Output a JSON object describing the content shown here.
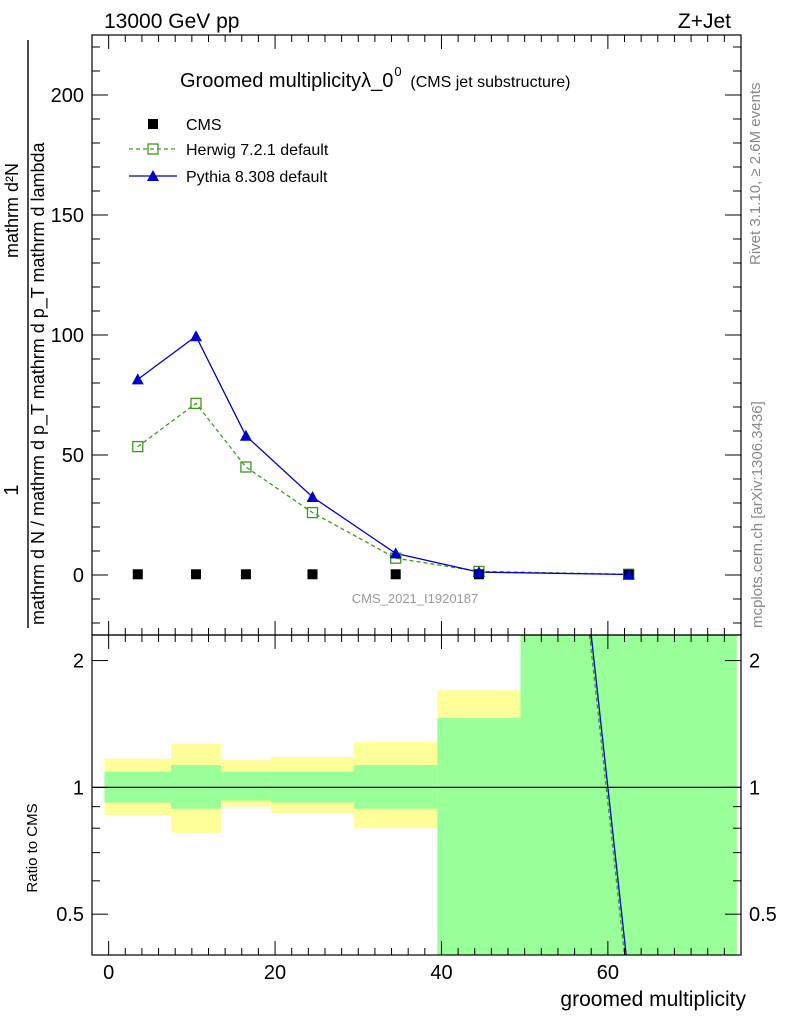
{
  "header": {
    "left": "13000 GeV pp",
    "right": "Z+Jet"
  },
  "side_labels": {
    "rivet": "Rivet 3.1.10, ≥ 2.6M events",
    "mcplots": "mcplots.cern.ch [arXiv:1306.3436]"
  },
  "chart_data": [
    {
      "type": "line",
      "title": "Groomed multiplicityλ_0",
      "title_sup": "0",
      "subtitle": "(CMS jet substructure)",
      "watermark": "CMS_2021_I1920187",
      "ylabel_numerator": "1",
      "ylabel_denominator": "mathrm d N / mathrm d p_T mathrm d p_T mathrm d lambda",
      "ylabel_numerator_right": "mathrm d²N",
      "xlim": [
        -2,
        76
      ],
      "ylim": [
        -25,
        225
      ],
      "yticks": [
        0,
        50,
        100,
        150,
        200
      ],
      "legend_position": "top-left",
      "series": [
        {
          "name": "CMS",
          "marker": "square",
          "color": "#000000",
          "x": [
            3.5,
            10.5,
            16.5,
            24.5,
            34.5,
            44.5,
            62.5
          ],
          "y": [
            0.3,
            0.3,
            0.3,
            0.3,
            0.3,
            0.3,
            0.2
          ]
        },
        {
          "name": "Herwig 7.2.1 default",
          "marker": "open-square",
          "line": "dashed",
          "color": "#3a9a1a",
          "x": [
            3.5,
            10.5,
            16.5,
            24.5,
            34.5,
            44.5,
            62.5
          ],
          "y": [
            53.5,
            71.5,
            45.0,
            26.0,
            7.0,
            1.5,
            0.3
          ]
        },
        {
          "name": "Pythia 8.308 default",
          "marker": "triangle",
          "line": "solid",
          "color": "#0000cc",
          "x": [
            3.5,
            10.5,
            16.5,
            24.5,
            34.5,
            44.5,
            62.5
          ],
          "y": [
            81.5,
            99.5,
            58.0,
            32.5,
            9.0,
            1.2,
            0.2
          ]
        }
      ]
    },
    {
      "type": "area",
      "ylabel": "Ratio to CMS",
      "xlabel": "groomed multiplicity",
      "xlim": [
        -2,
        76
      ],
      "ylim": [
        0.4,
        2.3
      ],
      "xticks": [
        0,
        20,
        40,
        60
      ],
      "yticks": [
        0.5,
        1,
        2
      ],
      "ytick_labels": [
        "0.5",
        "1",
        "2"
      ],
      "bins": [
        {
          "lo": -0.5,
          "hi": 7.5,
          "stat_lo": 0.92,
          "stat_hi": 1.09,
          "tot_lo": 0.86,
          "tot_hi": 1.17
        },
        {
          "lo": 7.5,
          "hi": 13.5,
          "stat_lo": 0.89,
          "stat_hi": 1.13,
          "tot_lo": 0.78,
          "tot_hi": 1.27
        },
        {
          "lo": 13.5,
          "hi": 19.5,
          "stat_lo": 0.93,
          "stat_hi": 1.09,
          "tot_lo": 0.9,
          "tot_hi": 1.16
        },
        {
          "lo": 19.5,
          "hi": 29.5,
          "stat_lo": 0.92,
          "stat_hi": 1.09,
          "tot_lo": 0.87,
          "tot_hi": 1.18
        },
        {
          "lo": 29.5,
          "hi": 39.5,
          "stat_lo": 0.89,
          "stat_hi": 1.13,
          "tot_lo": 0.8,
          "tot_hi": 1.28
        },
        {
          "lo": 39.5,
          "hi": 49.5,
          "stat_lo": 0.4,
          "stat_hi": 1.46,
          "tot_lo": 0.4,
          "tot_hi": 1.7
        },
        {
          "lo": 49.5,
          "hi": 75.5,
          "stat_lo": 0.4,
          "stat_hi": 2.3,
          "tot_lo": 0.4,
          "tot_hi": 2.3
        }
      ],
      "series": [
        {
          "name": "Herwig 7.2.1 default",
          "color": "#3a9a1a",
          "line": "dashed",
          "x": [
            57.8,
            62.0
          ],
          "y": [
            2.3,
            0.4
          ]
        },
        {
          "name": "Pythia 8.308 default",
          "color": "#0000cc",
          "line": "solid",
          "x": [
            58.0,
            62.2
          ],
          "y": [
            2.3,
            0.4
          ]
        }
      ]
    }
  ],
  "colors": {
    "stat_band": "#99ff99",
    "sys_band": "#ffff99",
    "cms": "#000000",
    "herwig": "#3a9a1a",
    "pythia": "#0000cc",
    "watermark": "#999999",
    "side_text": "#888888"
  }
}
